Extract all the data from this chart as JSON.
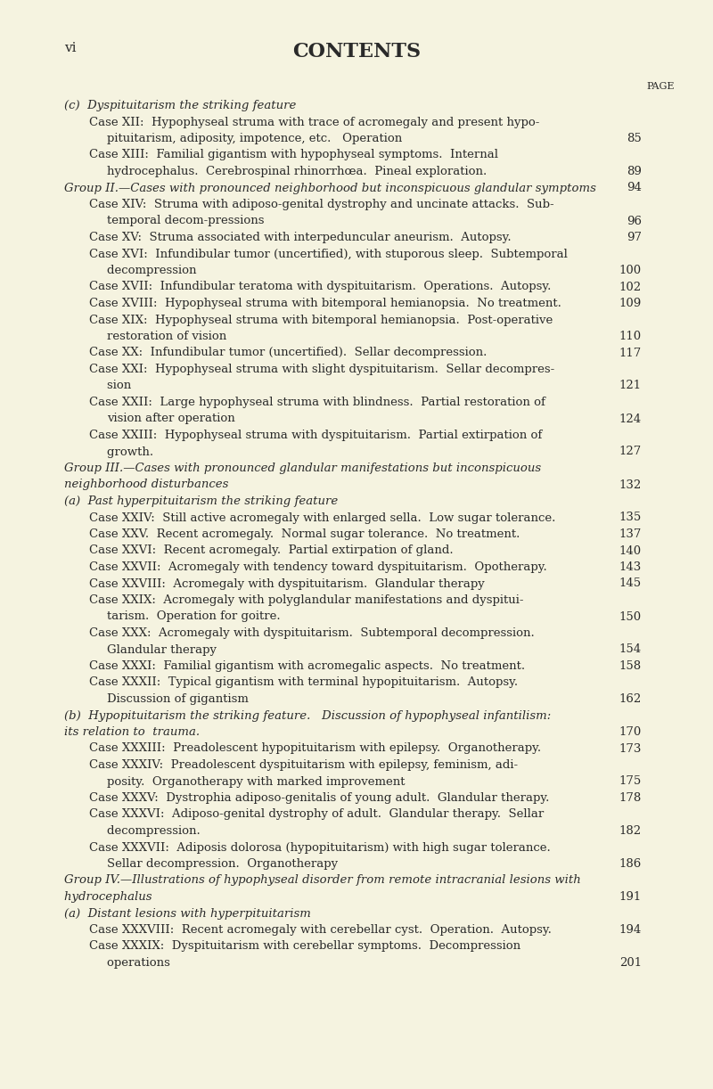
{
  "bg_color": "#f5f3e0",
  "text_color": "#2a2a2a",
  "page_label": "vi",
  "title": "CONTENTS",
  "page_word": "PAGE",
  "lines": [
    {
      "text": "(c)  Dyspituitarism the striking feature",
      "indent": 0,
      "style": "italic_label",
      "page": null
    },
    {
      "text": "Case XII:  Hypophyseal struma with trace of acromegaly and present hypo-",
      "indent": 1,
      "style": "normal",
      "page": null
    },
    {
      "text": "pituitarism, adiposity, impotence, etc.   Operation                         ",
      "indent": 2,
      "style": "normal",
      "page": 85
    },
    {
      "text": "Case XIII:  Familial gigantism with hypophyseal symptoms.  Internal",
      "indent": 1,
      "style": "normal",
      "page": null
    },
    {
      "text": "hydrocephalus.  Cerebrospinal rhinorrhœa.  Pineal exploration.          ",
      "indent": 2,
      "style": "normal",
      "page": 89
    },
    {
      "text": "Group II.—Cases with pronounced neighborhood but inconspicuous glandular symptoms",
      "indent": 0,
      "style": "group",
      "page": 94
    },
    {
      "text": "Case XIV:  Struma with adiposo-genital dystrophy and uncinate attacks.  Sub-",
      "indent": 1,
      "style": "normal",
      "page": null
    },
    {
      "text": "temporal decom­pressions                                               ",
      "indent": 2,
      "style": "normal",
      "page": 96
    },
    {
      "text": "Case XV:  Struma associated with interpeduncular aneurism.  Autopsy.     ",
      "indent": 1,
      "style": "normal",
      "page": 97
    },
    {
      "text": "Case XVI:  Infundibular tumor (uncertified), with stuporous sleep.  Subtemporal",
      "indent": 1,
      "style": "normal",
      "page": null
    },
    {
      "text": "decompression                                                     ",
      "indent": 2,
      "style": "normal",
      "page": 100
    },
    {
      "text": "Case XVII:  Infundibular teratoma with dyspituitarism.  Operations.  Autopsy.",
      "indent": 1,
      "style": "normal",
      "page": 102
    },
    {
      "text": "Case XVIII:  Hypophyseal struma with bitemporal hemianopsia.  No treatment.",
      "indent": 1,
      "style": "normal",
      "page": 109
    },
    {
      "text": "Case XIX:  Hypophyseal struma with bitemporal hemianopsia.  Post-operative",
      "indent": 1,
      "style": "normal",
      "page": null
    },
    {
      "text": "restoration of vision                                                   ",
      "indent": 2,
      "style": "normal",
      "page": 110
    },
    {
      "text": "Case XX:  Infundibular tumor (uncertified).  Sellar decompression.        ",
      "indent": 1,
      "style": "normal",
      "page": 117
    },
    {
      "text": "Case XXI:  Hypophyseal struma with slight dyspituitarism.  Sellar decompres-",
      "indent": 1,
      "style": "normal",
      "page": null
    },
    {
      "text": "sion                                                                      ",
      "indent": 2,
      "style": "normal",
      "page": 121
    },
    {
      "text": "Case XXII:  Large hypophyseal struma with blindness.  Partial restoration of",
      "indent": 1,
      "style": "normal",
      "page": null
    },
    {
      "text": "vision after operation                                                  ",
      "indent": 2,
      "style": "normal",
      "page": 124
    },
    {
      "text": "Case XXIII:  Hypophyseal struma with dyspituitarism.  Partial extirpation of",
      "indent": 1,
      "style": "normal",
      "page": null
    },
    {
      "text": "growth.                                                                      ",
      "indent": 2,
      "style": "normal",
      "page": 127
    },
    {
      "text": "Group III.—Cases with pronounced glandular manifestations but inconspicuous",
      "indent": 0,
      "style": "group",
      "page": null
    },
    {
      "text": "neighborhood disturbances                                                 ",
      "indent": 0,
      "style": "group_cont",
      "page": 132
    },
    {
      "text": "(a)  Past hyperpituitarism the striking feature",
      "indent": 0,
      "style": "italic_label",
      "page": null
    },
    {
      "text": "Case XXIV:  Still active acromegaly with enlarged sella.  Low sugar tolerance.",
      "indent": 1,
      "style": "normal",
      "page": 135
    },
    {
      "text": "Case XXV.  Recent acromegaly.  Normal sugar tolerance.  No treatment.    ",
      "indent": 1,
      "style": "normal",
      "page": 137
    },
    {
      "text": "Case XXVI:  Recent acromegaly.  Partial extirpation of gland.          ",
      "indent": 1,
      "style": "normal",
      "page": 140
    },
    {
      "text": "Case XXVII:  Acromegaly with tendency toward dyspituitarism.  Opotherapy.",
      "indent": 1,
      "style": "normal",
      "page": 143
    },
    {
      "text": "Case XXVIII:  Acromegaly with dyspituitarism.  Glandular therapy       ",
      "indent": 1,
      "style": "normal",
      "page": 145
    },
    {
      "text": "Case XXIX:  Acromegaly with polyglandular manifestations and dyspitui-",
      "indent": 1,
      "style": "normal",
      "page": null
    },
    {
      "text": "tarism.  Operation for goitre.                                               ",
      "indent": 2,
      "style": "normal",
      "page": 150
    },
    {
      "text": "Case XXX:  Acromegaly with dyspituitarism.  Subtemporal decompression.",
      "indent": 1,
      "style": "normal",
      "page": null
    },
    {
      "text": "Glandular therapy                                                       ",
      "indent": 2,
      "style": "normal",
      "page": 154
    },
    {
      "text": "Case XXXI:  Familial gigantism with acromegalic aspects.  No treatment.    ",
      "indent": 1,
      "style": "normal",
      "page": 158
    },
    {
      "text": "Case XXXII:  Typical gigantism with terminal hypopituitarism.  Autopsy.",
      "indent": 1,
      "style": "normal",
      "page": null
    },
    {
      "text": "Discussion of gigantism                                                 ",
      "indent": 2,
      "style": "normal",
      "page": 162
    },
    {
      "text": "(b)  Hypopituitarism the striking feature.   Discussion of hypophyseal infantilism:",
      "indent": 0,
      "style": "italic_label_b",
      "page": null
    },
    {
      "text": "its relation to  trauma.                                                  ",
      "indent": 0,
      "style": "italic_label_cont",
      "page": 170
    },
    {
      "text": "Case XXXIII:  Preadolescent hypopituitarism with epilepsy.  Organotherapy.",
      "indent": 1,
      "style": "normal",
      "page": 173
    },
    {
      "text": "Case XXXIV:  Preadolescent dyspituitarism with epilepsy, feminism, adi-",
      "indent": 1,
      "style": "normal",
      "page": null
    },
    {
      "text": "posity.  Organotherapy with marked improvement                ",
      "indent": 2,
      "style": "normal",
      "page": 175
    },
    {
      "text": "Case XXXV:  Dystrophia adiposo-genitalis of young adult.  Glandular therapy.",
      "indent": 1,
      "style": "normal",
      "page": 178
    },
    {
      "text": "Case XXXVI:  Adiposo-genital dystrophy of adult.  Glandular therapy.  Sellar",
      "indent": 1,
      "style": "normal",
      "page": null
    },
    {
      "text": "decompression.                                                         ",
      "indent": 2,
      "style": "normal",
      "page": 182
    },
    {
      "text": "Case XXXVII:  Adiposis dolorosa (hypopituitarism) with high sugar tolerance.",
      "indent": 1,
      "style": "normal",
      "page": null
    },
    {
      "text": "Sellar decompression.  Organotherapy                              ",
      "indent": 2,
      "style": "normal",
      "page": 186
    },
    {
      "text": "Group IV.—Illustrations of hypophyseal disorder from remote intracranial lesions with",
      "indent": 0,
      "style": "group",
      "page": null
    },
    {
      "text": "hydrocephalus                                                               ",
      "indent": 0,
      "style": "group_cont",
      "page": 191
    },
    {
      "text": "(a)  Distant lesions with hyperpituitarism",
      "indent": 0,
      "style": "italic_label",
      "page": null
    },
    {
      "text": "Case XXXVIII:  Recent acromegaly with cerebellar cyst.  Operation.  Autopsy.",
      "indent": 1,
      "style": "normal",
      "page": 194
    },
    {
      "text": "Case XXXIX:  Dyspituitarism with cerebellar symptoms.  Decompression",
      "indent": 1,
      "style": "normal",
      "page": null
    },
    {
      "text": "operations                                                                  ",
      "indent": 2,
      "style": "normal",
      "page": 201
    }
  ]
}
